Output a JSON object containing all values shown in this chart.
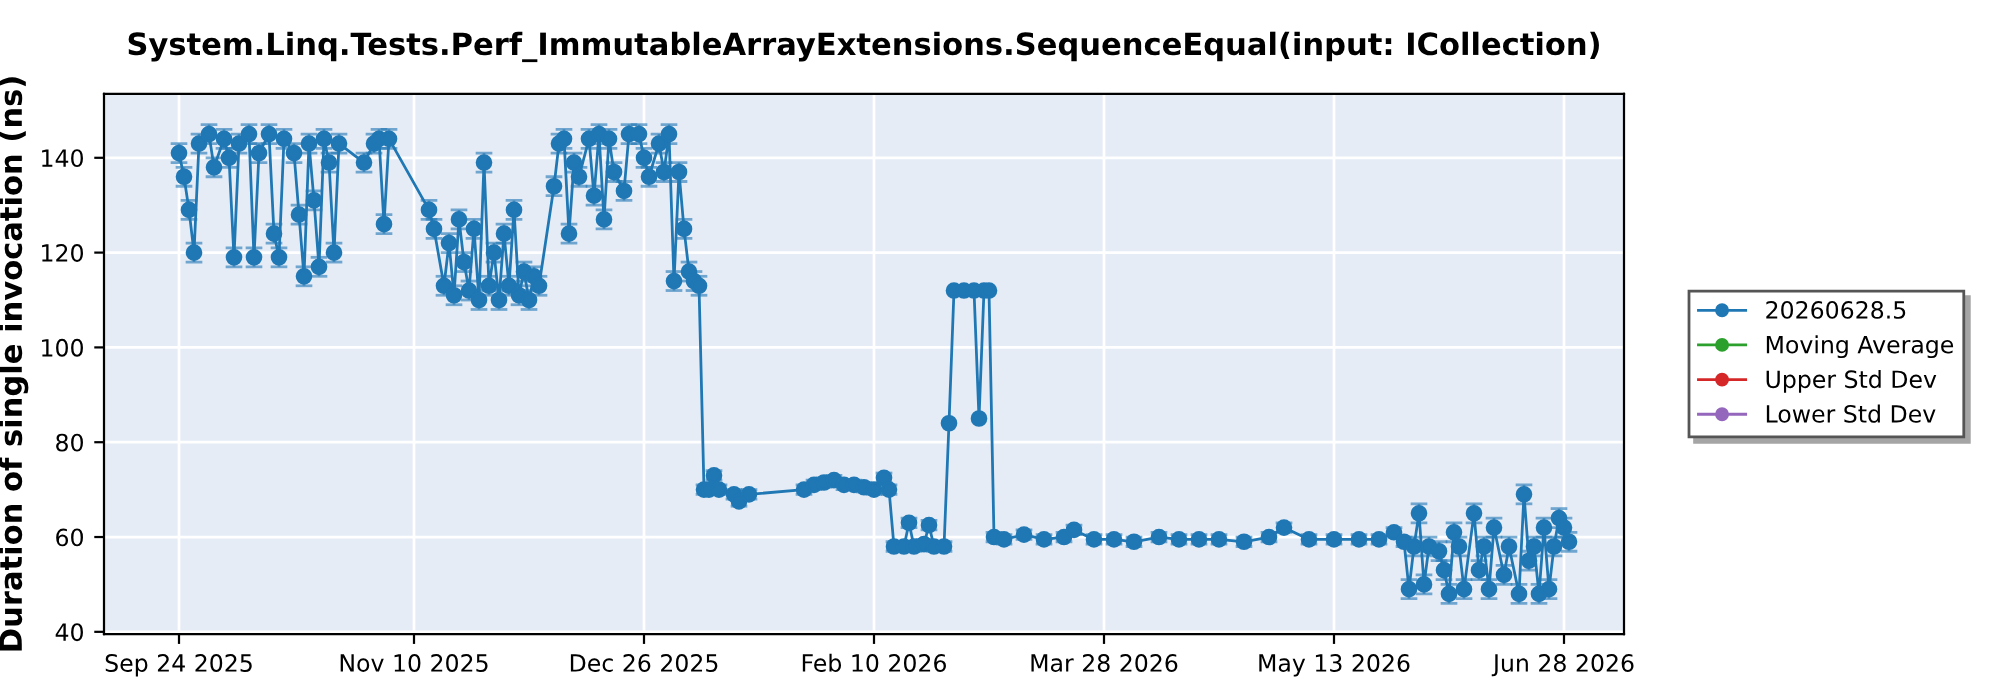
{
  "chart_data": {
    "type": "line",
    "title": "System.Linq.Tests.Perf_ImmutableArrayExtensions.SequenceEqual(input: ICollection)",
    "ylabel": "Duration of single invocation (ns)",
    "xlim": [
      "2025-09-09",
      "2026-07-10"
    ],
    "xticks": [
      {
        "value": "2025-09-24",
        "label": "Sep 24 2025"
      },
      {
        "value": "2025-11-10",
        "label": "Nov 10 2025"
      },
      {
        "value": "2025-12-26",
        "label": "Dec 26 2025"
      },
      {
        "value": "2026-02-10",
        "label": "Feb 10 2026"
      },
      {
        "value": "2026-03-28",
        "label": "Mar 28 2026"
      },
      {
        "value": "2026-05-13",
        "label": "May 13 2026"
      },
      {
        "value": "2026-06-28",
        "label": "Jun 28 2026"
      }
    ],
    "ylim": [
      39.5,
      153.5
    ],
    "yticks": [
      40,
      60,
      80,
      100,
      120,
      140
    ],
    "grid": true,
    "legend": "right",
    "marker": "circle",
    "line_style": "solid",
    "series": [
      {
        "name": "20260628.5",
        "color": "#1f77b4",
        "x": [
          "2025-09-24",
          "2025-09-25",
          "2025-09-26",
          "2025-09-27",
          "2025-09-28",
          "2025-09-30",
          "2025-10-01",
          "2025-10-03",
          "2025-10-04",
          "2025-10-05",
          "2025-10-06",
          "2025-10-08",
          "2025-10-09",
          "2025-10-10",
          "2025-10-12",
          "2025-10-13",
          "2025-10-14",
          "2025-10-15",
          "2025-10-17",
          "2025-10-18",
          "2025-10-19",
          "2025-10-20",
          "2025-10-21",
          "2025-10-22",
          "2025-10-23",
          "2025-10-24",
          "2025-10-25",
          "2025-10-26",
          "2025-10-31",
          "2025-11-02",
          "2025-11-03",
          "2025-11-04",
          "2025-11-05",
          "2025-11-13",
          "2025-11-14",
          "2025-11-16",
          "2025-11-17",
          "2025-11-18",
          "2025-11-19",
          "2025-11-20",
          "2025-11-21",
          "2025-11-22",
          "2025-11-23",
          "2025-11-24",
          "2025-11-25",
          "2025-11-26",
          "2025-11-27",
          "2025-11-28",
          "2025-11-29",
          "2025-11-30",
          "2025-12-01",
          "2025-12-02",
          "2025-12-03",
          "2025-12-04",
          "2025-12-05",
          "2025-12-08",
          "2025-12-09",
          "2025-12-10",
          "2025-12-11",
          "2025-12-12",
          "2025-12-13",
          "2025-12-15",
          "2025-12-16",
          "2025-12-17",
          "2025-12-18",
          "2025-12-19",
          "2025-12-20",
          "2025-12-22",
          "2025-12-23",
          "2025-12-25",
          "2025-12-26",
          "2025-12-27",
          "2025-12-29",
          "2025-12-30",
          "2025-12-31",
          "2026-01-01",
          "2026-01-02",
          "2026-01-03",
          "2026-01-04",
          "2026-01-05",
          "2026-01-06",
          "2026-01-07",
          "2026-01-08",
          "2026-01-09",
          "2026-01-10",
          "2026-01-13",
          "2026-01-14",
          "2026-01-16",
          "2026-01-27",
          "2026-01-29",
          "2026-01-31",
          "2026-02-02",
          "2026-02-04",
          "2026-02-06",
          "2026-02-08",
          "2026-02-10",
          "2026-02-12",
          "2026-02-13",
          "2026-02-14",
          "2026-02-16",
          "2026-02-17",
          "2026-02-18",
          "2026-02-20",
          "2026-02-21",
          "2026-02-22",
          "2026-02-24",
          "2026-02-25",
          "2026-02-26",
          "2026-02-28",
          "2026-03-02",
          "2026-03-03",
          "2026-03-04",
          "2026-03-05",
          "2026-03-06",
          "2026-03-08",
          "2026-03-12",
          "2026-03-16",
          "2026-03-20",
          "2026-03-22",
          "2026-03-26",
          "2026-03-30",
          "2026-04-03",
          "2026-04-08",
          "2026-04-12",
          "2026-04-16",
          "2026-04-20",
          "2026-04-25",
          "2026-04-30",
          "2026-05-03",
          "2026-05-08",
          "2026-05-13",
          "2026-05-18",
          "2026-05-22",
          "2026-05-25",
          "2026-05-27",
          "2026-05-28",
          "2026-05-29",
          "2026-05-30",
          "2026-05-31",
          "2026-06-01",
          "2026-06-03",
          "2026-06-04",
          "2026-06-05",
          "2026-06-06",
          "2026-06-07",
          "2026-06-08",
          "2026-06-10",
          "2026-06-11",
          "2026-06-12",
          "2026-06-13",
          "2026-06-14",
          "2026-06-16",
          "2026-06-17",
          "2026-06-19",
          "2026-06-20",
          "2026-06-21",
          "2026-06-22",
          "2026-06-23",
          "2026-06-24",
          "2026-06-25",
          "2026-06-26",
          "2026-06-27",
          "2026-06-28",
          "2026-06-29"
        ],
        "values": [
          141,
          136,
          129,
          120,
          143,
          145,
          138,
          144,
          140,
          119,
          143,
          145,
          119,
          141,
          145,
          124,
          119,
          144,
          141,
          128,
          115,
          143,
          131,
          117,
          144,
          139,
          120,
          143,
          139,
          143,
          144,
          126,
          144,
          129,
          125,
          113,
          122,
          111,
          127,
          118,
          112,
          125,
          110,
          139,
          113,
          120,
          110,
          124,
          113,
          129,
          111,
          116,
          110,
          115,
          113,
          134,
          143,
          144,
          124,
          139,
          136,
          144,
          132,
          145,
          127,
          144,
          137,
          133,
          145,
          145,
          140,
          136,
          143,
          137,
          145,
          114,
          137,
          125,
          116,
          114,
          113,
          70,
          70,
          73,
          70,
          69,
          67.5,
          69,
          70,
          71,
          71.5,
          72,
          71,
          71,
          70.5,
          70,
          72.5,
          70,
          58,
          58,
          63,
          58,
          58.5,
          62.5,
          58,
          58,
          84,
          112,
          112,
          112,
          85,
          112,
          112,
          60,
          59.5,
          60.5,
          59.5,
          60,
          61.5,
          59.5,
          59.5,
          59,
          60,
          59.5,
          59.5,
          59.5,
          59,
          60,
          62,
          59.5,
          59.5,
          59.5,
          59.5,
          61,
          59,
          49,
          58,
          65,
          50,
          58,
          57,
          53,
          48,
          61,
          58,
          49,
          65,
          53,
          58,
          49,
          62,
          52,
          58,
          48,
          69,
          55,
          58,
          48,
          62,
          49,
          58,
          64,
          62,
          59
        ],
        "errors": [
          2,
          2,
          2,
          2,
          2,
          2,
          2,
          2,
          2,
          2,
          2,
          2,
          2,
          2,
          2,
          2,
          2,
          2,
          2,
          2,
          2,
          2,
          2,
          2,
          2,
          2,
          2,
          2,
          2,
          2,
          2,
          2,
          2,
          2,
          2,
          2,
          2,
          2,
          2,
          2,
          2,
          2,
          2,
          2,
          2,
          2,
          2,
          2,
          2,
          2,
          2,
          2,
          2,
          2,
          2,
          2,
          2,
          2,
          2,
          2,
          2,
          2,
          2,
          2,
          2,
          2,
          2,
          2,
          2,
          2,
          2,
          2,
          2,
          2,
          2,
          2,
          2,
          2,
          2,
          2,
          2,
          1,
          1,
          1,
          1,
          1,
          1,
          1,
          1,
          1,
          1,
          1,
          1,
          1,
          1,
          1,
          1,
          1,
          1,
          1,
          1,
          1,
          1,
          1,
          1,
          1,
          null,
          null,
          null,
          null,
          null,
          null,
          null,
          1,
          1,
          1,
          1,
          1,
          1,
          1,
          1,
          1,
          1,
          1,
          1,
          1,
          1,
          1,
          1,
          1,
          1,
          1,
          1,
          1,
          1,
          2,
          2,
          2,
          2,
          2,
          2,
          2,
          2,
          2,
          2,
          2,
          2,
          2,
          2,
          2,
          2,
          2,
          2,
          2,
          2,
          2,
          2,
          2,
          2,
          2,
          2,
          2,
          2,
          2
        ]
      },
      {
        "name": "Moving Average",
        "color": "#2ca02c"
      },
      {
        "name": "Upper Std Dev",
        "color": "#d62728"
      },
      {
        "name": "Lower Std Dev",
        "color": "#9467bd"
      }
    ]
  }
}
